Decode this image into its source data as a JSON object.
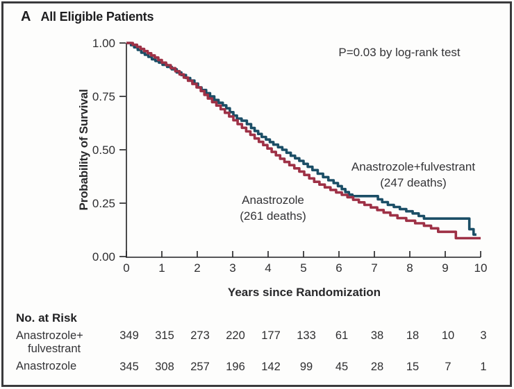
{
  "panel": {
    "label": "A",
    "title": "All Eligible Patients"
  },
  "annotations": {
    "pvalue": "P=0.03 by log-rank test"
  },
  "axes": {
    "ylabel": "Probability of Survival",
    "xlabel": "Years since Randomization"
  },
  "chart_data": {
    "type": "line",
    "subtype": "kaplan-meier-step",
    "title": "All Eligible Patients",
    "xlabel": "Years since Randomization",
    "ylabel": "Probability of Survival",
    "xlim": [
      0,
      10
    ],
    "ylim": [
      0.0,
      1.0
    ],
    "x_ticks": [
      0,
      1,
      2,
      3,
      4,
      5,
      6,
      7,
      8,
      9,
      10
    ],
    "y_ticks": [
      "0.00",
      "0.25",
      "0.50",
      "0.75",
      "1.00"
    ],
    "grid": false,
    "annotation": "P=0.03 by log-rank test",
    "series": [
      {
        "name": "Anastrozole+fulvestrant",
        "deaths": 247,
        "label_line1": "Anastrozole+fulvestrant",
        "label_line2": "(247 deaths)",
        "color": "#1b4e66",
        "points": [
          [
            0,
            1.0
          ],
          [
            0.13,
            0.99
          ],
          [
            0.22,
            0.98
          ],
          [
            0.32,
            0.968
          ],
          [
            0.42,
            0.955
          ],
          [
            0.52,
            0.945
          ],
          [
            0.62,
            0.935
          ],
          [
            0.72,
            0.924
          ],
          [
            0.82,
            0.916
          ],
          [
            0.92,
            0.908
          ],
          [
            1.02,
            0.898
          ],
          [
            1.15,
            0.888
          ],
          [
            1.28,
            0.877
          ],
          [
            1.42,
            0.862
          ],
          [
            1.55,
            0.85
          ],
          [
            1.68,
            0.836
          ],
          [
            1.8,
            0.824
          ],
          [
            1.92,
            0.81
          ],
          [
            2.02,
            0.792
          ],
          [
            2.12,
            0.78
          ],
          [
            2.25,
            0.765
          ],
          [
            2.36,
            0.75
          ],
          [
            2.48,
            0.733
          ],
          [
            2.6,
            0.72
          ],
          [
            2.72,
            0.708
          ],
          [
            2.82,
            0.694
          ],
          [
            2.92,
            0.676
          ],
          [
            3.02,
            0.66
          ],
          [
            3.12,
            0.646
          ],
          [
            3.25,
            0.636
          ],
          [
            3.4,
            0.62
          ],
          [
            3.52,
            0.602
          ],
          [
            3.62,
            0.588
          ],
          [
            3.72,
            0.574
          ],
          [
            3.82,
            0.56
          ],
          [
            3.94,
            0.548
          ],
          [
            4.05,
            0.536
          ],
          [
            4.15,
            0.524
          ],
          [
            4.28,
            0.512
          ],
          [
            4.4,
            0.5
          ],
          [
            4.52,
            0.486
          ],
          [
            4.64,
            0.472
          ],
          [
            4.76,
            0.46
          ],
          [
            4.88,
            0.448
          ],
          [
            5.0,
            0.434
          ],
          [
            5.12,
            0.42
          ],
          [
            5.25,
            0.405
          ],
          [
            5.4,
            0.388
          ],
          [
            5.55,
            0.372
          ],
          [
            5.7,
            0.357
          ],
          [
            5.85,
            0.344
          ],
          [
            5.97,
            0.33
          ],
          [
            6.08,
            0.316
          ],
          [
            6.18,
            0.302
          ],
          [
            6.28,
            0.29
          ],
          [
            6.38,
            0.283
          ],
          [
            7.08,
            0.283
          ],
          [
            7.1,
            0.268
          ],
          [
            7.22,
            0.255
          ],
          [
            7.38,
            0.242
          ],
          [
            7.55,
            0.232
          ],
          [
            7.72,
            0.222
          ],
          [
            7.9,
            0.212
          ],
          [
            8.08,
            0.202
          ],
          [
            8.25,
            0.19
          ],
          [
            8.4,
            0.178
          ],
          [
            9.68,
            0.128
          ],
          [
            9.8,
            0.103
          ],
          [
            9.88,
            0.103
          ]
        ]
      },
      {
        "name": "Anastrozole",
        "deaths": 261,
        "label_line1": "Anastrozole",
        "label_line2": "(261 deaths)",
        "color": "#9e3146",
        "points": [
          [
            0,
            1.0
          ],
          [
            0.18,
            0.992
          ],
          [
            0.3,
            0.982
          ],
          [
            0.4,
            0.972
          ],
          [
            0.5,
            0.962
          ],
          [
            0.6,
            0.952
          ],
          [
            0.7,
            0.942
          ],
          [
            0.8,
            0.932
          ],
          [
            0.9,
            0.92
          ],
          [
            1.0,
            0.908
          ],
          [
            1.12,
            0.896
          ],
          [
            1.25,
            0.882
          ],
          [
            1.38,
            0.868
          ],
          [
            1.5,
            0.853
          ],
          [
            1.62,
            0.838
          ],
          [
            1.74,
            0.823
          ],
          [
            1.86,
            0.808
          ],
          [
            1.98,
            0.792
          ],
          [
            2.1,
            0.775
          ],
          [
            2.2,
            0.757
          ],
          [
            2.3,
            0.74
          ],
          [
            2.42,
            0.723
          ],
          [
            2.54,
            0.707
          ],
          [
            2.66,
            0.69
          ],
          [
            2.78,
            0.673
          ],
          [
            2.9,
            0.656
          ],
          [
            3.02,
            0.638
          ],
          [
            3.14,
            0.62
          ],
          [
            3.26,
            0.603
          ],
          [
            3.38,
            0.586
          ],
          [
            3.5,
            0.57
          ],
          [
            3.62,
            0.553
          ],
          [
            3.74,
            0.537
          ],
          [
            3.86,
            0.522
          ],
          [
            3.98,
            0.506
          ],
          [
            4.1,
            0.49
          ],
          [
            4.22,
            0.474
          ],
          [
            4.34,
            0.458
          ],
          [
            4.46,
            0.443
          ],
          [
            4.6,
            0.428
          ],
          [
            4.74,
            0.413
          ],
          [
            4.88,
            0.398
          ],
          [
            5.02,
            0.382
          ],
          [
            5.16,
            0.366
          ],
          [
            5.3,
            0.35
          ],
          [
            5.45,
            0.337
          ],
          [
            5.6,
            0.324
          ],
          [
            5.76,
            0.312
          ],
          [
            5.92,
            0.3
          ],
          [
            6.08,
            0.289
          ],
          [
            6.24,
            0.278
          ],
          [
            6.4,
            0.266
          ],
          [
            6.56,
            0.254
          ],
          [
            6.72,
            0.242
          ],
          [
            6.9,
            0.23
          ],
          [
            7.08,
            0.218
          ],
          [
            7.26,
            0.206
          ],
          [
            7.45,
            0.193
          ],
          [
            7.65,
            0.18
          ],
          [
            7.9,
            0.168
          ],
          [
            8.15,
            0.156
          ],
          [
            8.4,
            0.144
          ],
          [
            8.6,
            0.132
          ],
          [
            8.8,
            0.116
          ],
          [
            9.3,
            0.086
          ],
          [
            10.0,
            0.086
          ]
        ]
      }
    ]
  },
  "risk_table": {
    "header": "No. at Risk",
    "years": [
      0,
      1,
      2,
      3,
      4,
      5,
      6,
      7,
      8,
      9,
      10
    ],
    "rows": [
      {
        "label_line1": "Anastrozole+",
        "label_line2": "fulvestrant",
        "values": [
          349,
          315,
          273,
          220,
          177,
          133,
          61,
          38,
          18,
          10,
          3
        ]
      },
      {
        "label_line1": "Anastrozole",
        "label_line2": "",
        "values": [
          345,
          308,
          257,
          196,
          142,
          99,
          45,
          28,
          15,
          7,
          1
        ]
      }
    ]
  },
  "colors": {
    "blue": "#1b4e66",
    "red": "#9e3146",
    "axis": "#1f1f21",
    "text": "#2d2d2f",
    "frame": "#3a3a3c"
  }
}
